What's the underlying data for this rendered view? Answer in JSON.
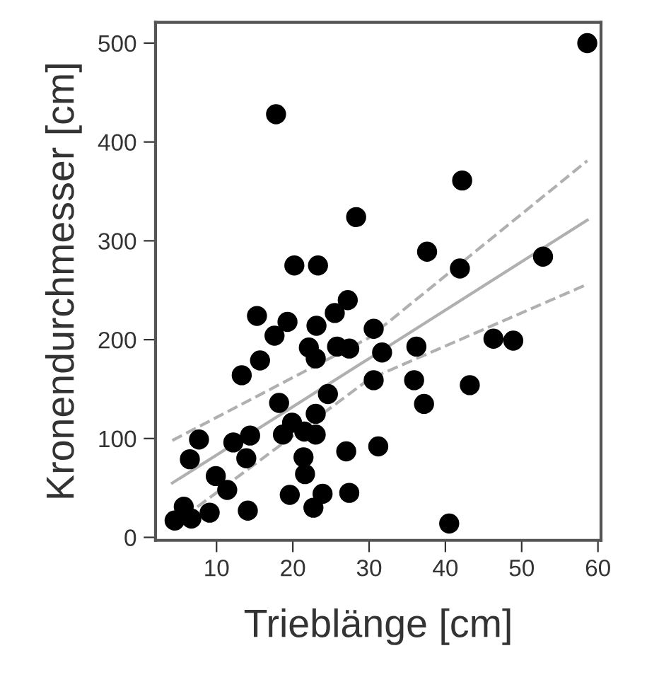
{
  "chart_data": {
    "type": "scatter",
    "xlabel": "Trieblänge [cm]",
    "ylabel": "Kronendurchmesser [cm]",
    "xlim": [
      2,
      60.4
    ],
    "ylim": [
      -3,
      521
    ],
    "xticks": [
      10,
      20,
      30,
      40,
      50,
      60
    ],
    "yticks": [
      0,
      100,
      200,
      300,
      400,
      500
    ],
    "grid": false,
    "series": [
      {
        "marker": "circle",
        "color": "#000000",
        "x": [
          58.6,
          17.8,
          42.2,
          28.3,
          37.6,
          41.9,
          52.8,
          20.2,
          23.3,
          27.2,
          25.5,
          15.3,
          19.3,
          17.6,
          23.1,
          30.6,
          22.1,
          23.0,
          25.8,
          27.4,
          31.7,
          36.2,
          46.3,
          48.9,
          15.7,
          13.3,
          30.6,
          35.9,
          43.2,
          37.2,
          18.2,
          24.6,
          23.0,
          19.9,
          18.7,
          23.0,
          21.5,
          14.4,
          12.2,
          13.9,
          7.7,
          6.5,
          31.2,
          27.0,
          21.4,
          21.6,
          9.9,
          11.4,
          19.6,
          23.9,
          27.4,
          22.7,
          14.1,
          9.1,
          6.7,
          4.5,
          5.7,
          40.5
        ],
        "values": [
          500,
          428,
          361,
          324,
          289,
          272,
          284,
          275,
          275,
          240,
          227,
          224,
          218,
          204,
          214,
          211,
          192,
          181,
          193,
          191,
          187,
          193,
          201,
          199,
          179,
          164,
          159,
          159,
          154,
          135,
          136,
          145,
          125,
          116,
          104,
          104,
          107,
          103,
          96,
          80,
          99,
          79,
          92,
          87,
          81,
          64,
          62,
          48,
          43,
          44,
          45,
          30,
          27,
          25,
          19,
          17,
          31,
          14
        ]
      },
      {
        "type": "line",
        "marker": "none",
        "color": "#b0b0b0",
        "line_style": "solid",
        "x": [
          4.2,
          30,
          58.6
        ],
        "values": [
          55,
          181,
          321
        ]
      },
      {
        "type": "line",
        "marker": "none",
        "color": "#b0b0b0",
        "line_style": "dashed",
        "x": [
          4.2,
          30,
          58.6
        ],
        "values": [
          98,
          202,
          381
        ]
      },
      {
        "type": "line",
        "marker": "none",
        "color": "#b0b0b0",
        "line_style": "dashed",
        "x": [
          4.2,
          30,
          58.6
        ],
        "values": [
          12,
          160,
          256
        ]
      }
    ]
  }
}
